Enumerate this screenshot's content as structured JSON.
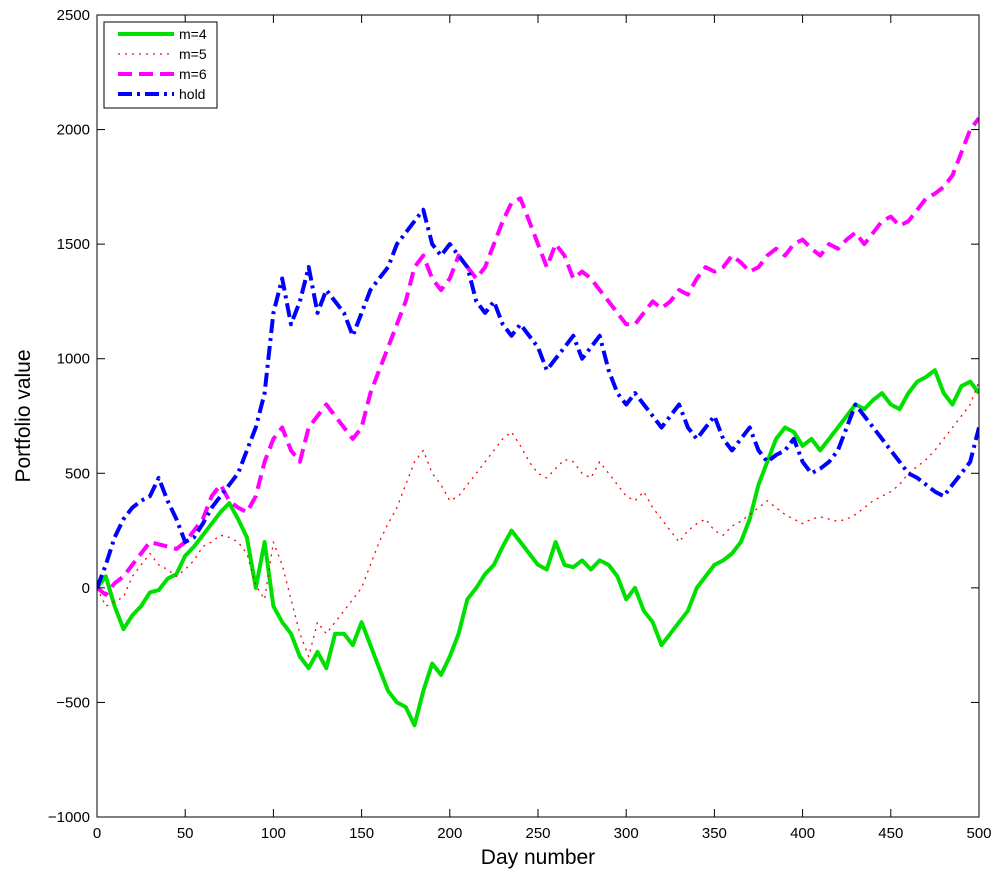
{
  "chart_data": {
    "type": "line",
    "title": "",
    "xlabel": "Day number",
    "ylabel": "Portfolio value",
    "xlim": [
      0,
      500
    ],
    "ylim": [
      -1000,
      2500
    ],
    "xticks": [
      0,
      50,
      100,
      150,
      200,
      250,
      300,
      350,
      400,
      450,
      500
    ],
    "yticks": [
      -1000,
      -500,
      0,
      500,
      1000,
      1500,
      2000,
      2500
    ],
    "grid": false,
    "legend_position": "top-left",
    "series": [
      {
        "name": "m=4",
        "color": "#00e000",
        "style": "solid",
        "x": [
          0,
          5,
          10,
          15,
          20,
          25,
          30,
          35,
          40,
          45,
          50,
          55,
          60,
          65,
          70,
          75,
          80,
          85,
          90,
          95,
          100,
          105,
          110,
          115,
          120,
          125,
          130,
          135,
          140,
          145,
          150,
          155,
          160,
          165,
          170,
          175,
          180,
          185,
          190,
          195,
          200,
          205,
          210,
          215,
          220,
          225,
          230,
          235,
          240,
          245,
          250,
          255,
          260,
          265,
          270,
          275,
          280,
          285,
          290,
          295,
          300,
          305,
          310,
          315,
          320,
          325,
          330,
          335,
          340,
          345,
          350,
          355,
          360,
          365,
          370,
          375,
          380,
          385,
          390,
          395,
          400,
          405,
          410,
          415,
          420,
          425,
          430,
          435,
          440,
          445,
          450,
          455,
          460,
          465,
          470,
          475,
          480,
          485,
          490,
          495,
          500
        ],
        "values": [
          0,
          50,
          -80,
          -180,
          -120,
          -80,
          -20,
          -10,
          40,
          60,
          140,
          180,
          230,
          280,
          330,
          370,
          300,
          220,
          0,
          200,
          -80,
          -150,
          -200,
          -300,
          -350,
          -280,
          -350,
          -200,
          -200,
          -250,
          -150,
          -250,
          -350,
          -450,
          -500,
          -520,
          -600,
          -450,
          -330,
          -380,
          -300,
          -200,
          -50,
          0,
          60,
          100,
          180,
          250,
          200,
          150,
          100,
          80,
          200,
          100,
          90,
          120,
          80,
          120,
          100,
          50,
          -50,
          0,
          -100,
          -150,
          -250,
          -200,
          -150,
          -100,
          0,
          50,
          100,
          120,
          150,
          200,
          300,
          450,
          550,
          650,
          700,
          680,
          620,
          650,
          600,
          650,
          700,
          750,
          800,
          780,
          820,
          850,
          800,
          780,
          850,
          900,
          920,
          950,
          850,
          800,
          880,
          900,
          850
        ]
      },
      {
        "name": "m=5",
        "color": "#ff0000",
        "style": "dotted",
        "x": [
          0,
          5,
          10,
          15,
          20,
          25,
          30,
          35,
          40,
          45,
          50,
          55,
          60,
          65,
          70,
          75,
          80,
          85,
          90,
          95,
          100,
          105,
          110,
          115,
          120,
          125,
          130,
          135,
          140,
          145,
          150,
          155,
          160,
          165,
          170,
          175,
          180,
          185,
          190,
          195,
          200,
          205,
          210,
          215,
          220,
          225,
          230,
          235,
          240,
          245,
          250,
          255,
          260,
          265,
          270,
          275,
          280,
          285,
          290,
          295,
          300,
          305,
          310,
          315,
          320,
          325,
          330,
          335,
          340,
          345,
          350,
          355,
          360,
          365,
          370,
          375,
          380,
          385,
          390,
          395,
          400,
          405,
          410,
          415,
          420,
          425,
          430,
          435,
          440,
          445,
          450,
          455,
          460,
          465,
          470,
          475,
          480,
          485,
          490,
          495,
          500
        ],
        "values": [
          0,
          -80,
          -60,
          -40,
          50,
          100,
          150,
          100,
          80,
          50,
          80,
          120,
          180,
          200,
          230,
          220,
          200,
          150,
          10,
          -50,
          200,
          100,
          -50,
          -200,
          -300,
          -150,
          -200,
          -150,
          -100,
          -50,
          0,
          100,
          200,
          280,
          350,
          450,
          550,
          600,
          500,
          450,
          380,
          400,
          450,
          500,
          550,
          600,
          650,
          680,
          620,
          550,
          500,
          480,
          520,
          560,
          550,
          500,
          480,
          550,
          500,
          450,
          400,
          380,
          420,
          350,
          300,
          250,
          200,
          250,
          280,
          300,
          250,
          230,
          270,
          290,
          320,
          350,
          380,
          350,
          320,
          300,
          280,
          300,
          310,
          300,
          290,
          300,
          320,
          350,
          380,
          400,
          420,
          450,
          500,
          530,
          560,
          600,
          650,
          700,
          750,
          800,
          900
        ]
      },
      {
        "name": "m=6",
        "color": "#ff00ff",
        "style": "dashed",
        "x": [
          0,
          5,
          10,
          15,
          20,
          25,
          30,
          35,
          40,
          45,
          50,
          55,
          60,
          65,
          70,
          75,
          80,
          85,
          90,
          95,
          100,
          105,
          110,
          115,
          120,
          125,
          130,
          135,
          140,
          145,
          150,
          155,
          160,
          165,
          170,
          175,
          180,
          185,
          190,
          195,
          200,
          205,
          210,
          215,
          220,
          225,
          230,
          235,
          240,
          245,
          250,
          255,
          260,
          265,
          270,
          275,
          280,
          285,
          290,
          295,
          300,
          305,
          310,
          315,
          320,
          325,
          330,
          335,
          340,
          345,
          350,
          355,
          360,
          365,
          370,
          375,
          380,
          385,
          390,
          395,
          400,
          405,
          410,
          415,
          420,
          425,
          430,
          435,
          440,
          445,
          450,
          455,
          460,
          465,
          470,
          475,
          480,
          485,
          490,
          495,
          500
        ],
        "values": [
          0,
          -30,
          20,
          50,
          100,
          150,
          200,
          190,
          180,
          170,
          200,
          250,
          300,
          400,
          450,
          380,
          350,
          330,
          400,
          550,
          650,
          700,
          600,
          550,
          700,
          750,
          800,
          750,
          700,
          650,
          700,
          850,
          950,
          1050,
          1150,
          1250,
          1400,
          1450,
          1350,
          1300,
          1350,
          1450,
          1400,
          1350,
          1400,
          1500,
          1600,
          1680,
          1700,
          1600,
          1500,
          1400,
          1500,
          1450,
          1350,
          1380,
          1350,
          1300,
          1250,
          1200,
          1150,
          1150,
          1200,
          1250,
          1220,
          1250,
          1300,
          1280,
          1350,
          1400,
          1380,
          1400,
          1450,
          1420,
          1380,
          1400,
          1450,
          1480,
          1450,
          1500,
          1520,
          1480,
          1450,
          1500,
          1480,
          1520,
          1550,
          1500,
          1550,
          1600,
          1620,
          1580,
          1600,
          1650,
          1700,
          1720,
          1750,
          1800,
          1900,
          2000,
          2050
        ]
      },
      {
        "name": "hold",
        "color": "#0000ff",
        "style": "dashdot",
        "x": [
          0,
          5,
          10,
          15,
          20,
          25,
          30,
          35,
          40,
          45,
          50,
          55,
          60,
          65,
          70,
          75,
          80,
          85,
          90,
          95,
          100,
          105,
          110,
          115,
          120,
          125,
          130,
          135,
          140,
          145,
          150,
          155,
          160,
          165,
          170,
          175,
          180,
          185,
          190,
          195,
          200,
          205,
          210,
          215,
          220,
          225,
          230,
          235,
          240,
          245,
          250,
          255,
          260,
          265,
          270,
          275,
          280,
          285,
          290,
          295,
          300,
          305,
          310,
          315,
          320,
          325,
          330,
          335,
          340,
          345,
          350,
          355,
          360,
          365,
          370,
          375,
          380,
          385,
          390,
          395,
          400,
          405,
          410,
          415,
          420,
          425,
          430,
          435,
          440,
          445,
          450,
          455,
          460,
          465,
          470,
          475,
          480,
          485,
          490,
          495,
          500
        ],
        "values": [
          0,
          100,
          220,
          300,
          350,
          380,
          400,
          480,
          380,
          300,
          200,
          220,
          280,
          350,
          400,
          450,
          500,
          600,
          700,
          850,
          1200,
          1350,
          1150,
          1250,
          1400,
          1200,
          1300,
          1250,
          1200,
          1100,
          1200,
          1300,
          1350,
          1400,
          1500,
          1550,
          1600,
          1650,
          1500,
          1450,
          1500,
          1450,
          1400,
          1250,
          1200,
          1250,
          1150,
          1100,
          1150,
          1100,
          1050,
          950,
          1000,
          1050,
          1100,
          1000,
          1050,
          1100,
          950,
          850,
          800,
          850,
          800,
          750,
          700,
          750,
          800,
          700,
          650,
          700,
          750,
          650,
          600,
          650,
          700,
          600,
          550,
          580,
          600,
          650,
          550,
          500,
          520,
          550,
          600,
          700,
          800,
          750,
          700,
          650,
          600,
          550,
          500,
          480,
          450,
          420,
          400,
          450,
          500,
          550,
          700
        ]
      }
    ]
  }
}
